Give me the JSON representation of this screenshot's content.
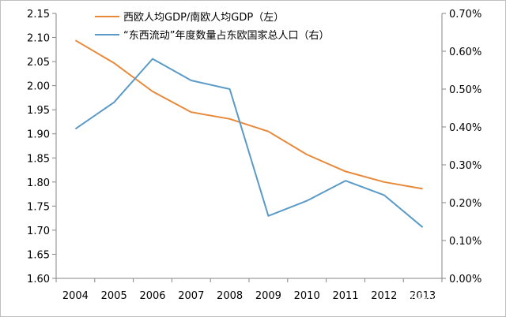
{
  "chart_data": {
    "type": "line",
    "categories": [
      "2004",
      "2005",
      "2006",
      "2007",
      "2008",
      "2009",
      "2010",
      "2011",
      "2012",
      "2013"
    ],
    "y_left": {
      "ylim": [
        1.6,
        2.15
      ],
      "ticks": [
        "1.60",
        "1.65",
        "1.70",
        "1.75",
        "1.80",
        "1.85",
        "1.90",
        "1.95",
        "2.00",
        "2.05",
        "2.10",
        "2.15"
      ]
    },
    "y_right": {
      "ylim": [
        0.0,
        0.7
      ],
      "ticks": [
        "0.00%",
        "0.10%",
        "0.20%",
        "0.30%",
        "0.40%",
        "0.50%",
        "0.60%",
        "0.70%"
      ]
    },
    "series": [
      {
        "name": "西欧人均GDP/南欧人均GDP（左）",
        "axis": "left",
        "color": "#e8893a",
        "values": [
          2.094,
          2.047,
          1.988,
          1.945,
          1.931,
          1.905,
          1.857,
          1.822,
          1.8,
          1.786
        ]
      },
      {
        "name": "“东西流动”年度数量占东欧国家总人口（右）",
        "axis": "right",
        "color": "#5a9ac6",
        "values": [
          0.395,
          0.465,
          0.58,
          0.523,
          0.5,
          0.165,
          0.205,
          0.258,
          0.22,
          0.135
        ]
      }
    ],
    "grid": false,
    "legend_position": "top-left"
  },
  "watermark": "知乎 @栾雨辰"
}
